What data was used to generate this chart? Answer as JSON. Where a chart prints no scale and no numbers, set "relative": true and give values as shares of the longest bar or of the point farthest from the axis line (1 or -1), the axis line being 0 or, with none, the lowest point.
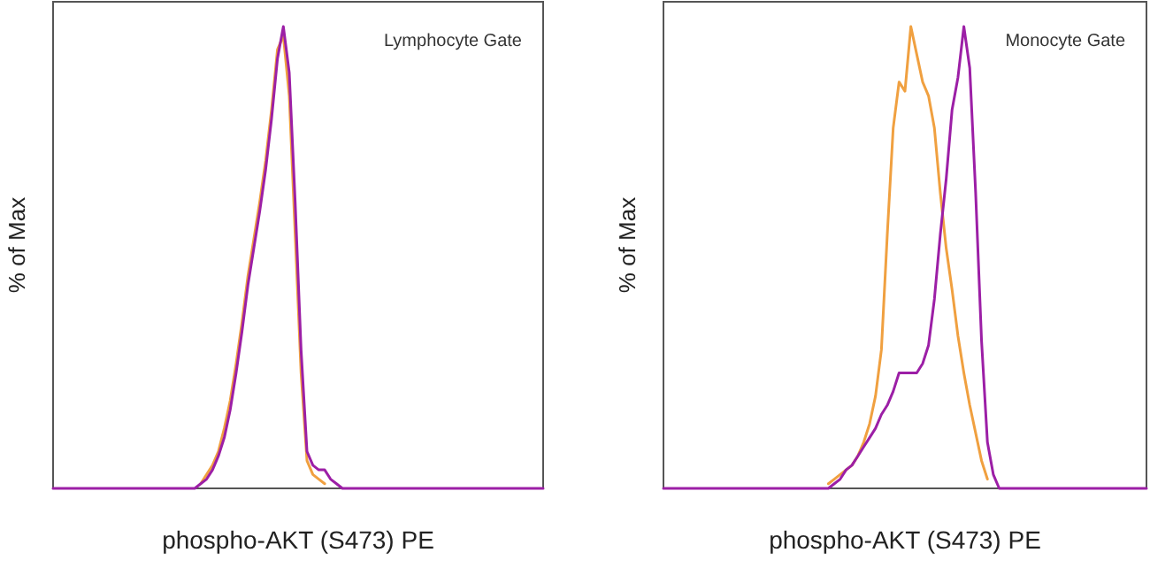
{
  "chart_data": [
    {
      "type": "line",
      "relative": true,
      "xlabel": "phospho-AKT (S473) PE",
      "ylabel": "% of Max",
      "annotations": [
        "Lymphocyte Gate"
      ],
      "categories": [
        null,
        null,
        null,
        null,
        null,
        null,
        null,
        null,
        null,
        null,
        null,
        null,
        null,
        null,
        null,
        null,
        null,
        null,
        null,
        null,
        null,
        null,
        null,
        null,
        null,
        null,
        null,
        null,
        null,
        null,
        null,
        null,
        null,
        null,
        null,
        null,
        null,
        null,
        null,
        null,
        null,
        null,
        null,
        null,
        null,
        null,
        null,
        null,
        null,
        null,
        null,
        null,
        null,
        null,
        null,
        null,
        null,
        null,
        null,
        null,
        null,
        null,
        null,
        null,
        null,
        null,
        null,
        null,
        null,
        null,
        null,
        null,
        null,
        null,
        null,
        null,
        null,
        null,
        null,
        null,
        null,
        null,
        null,
        null
      ],
      "series": [
        {
          "color": "#f0a040",
          "values": [
            null,
            null,
            null,
            null,
            null,
            null,
            null,
            null,
            null,
            null,
            null,
            null,
            null,
            null,
            null,
            null,
            null,
            null,
            null,
            null,
            null,
            null,
            null,
            null,
            null,
            0.01,
            0.03,
            0.05,
            0.08,
            0.13,
            0.19,
            0.27,
            0.36,
            0.46,
            0.54,
            0.62,
            0.71,
            0.82,
            0.95,
            0.98,
            0.85,
            0.55,
            0.25,
            0.06,
            0.03,
            0.02,
            0.01,
            null,
            null,
            null,
            null,
            null,
            null,
            null,
            null,
            null,
            null,
            null,
            null,
            null,
            null,
            null,
            null,
            null,
            null,
            null,
            null,
            null,
            null,
            null,
            null,
            null,
            null,
            null,
            null,
            null,
            null,
            null,
            null,
            null,
            null,
            null,
            null,
            null
          ]
        },
        {
          "color": "#9c1fa6",
          "values": [
            0,
            0,
            0,
            0,
            0,
            0,
            0,
            0,
            0,
            0,
            0,
            0,
            0,
            0,
            0,
            0,
            0,
            0,
            0,
            0,
            0,
            0,
            0,
            0,
            0,
            0.01,
            0.02,
            0.04,
            0.07,
            0.11,
            0.17,
            0.25,
            0.34,
            0.44,
            0.52,
            0.6,
            0.69,
            0.8,
            0.93,
            1,
            0.9,
            0.62,
            0.3,
            0.08,
            0.05,
            0.04,
            0.04,
            0.02,
            0.01,
            0,
            0,
            0,
            0,
            0,
            0,
            0,
            0,
            0,
            0,
            0,
            0,
            0,
            0,
            0,
            0,
            0,
            0,
            0,
            0,
            0,
            0,
            0,
            0,
            0,
            0,
            0,
            0,
            0,
            0,
            0,
            0,
            0,
            0,
            0
          ]
        }
      ]
    },
    {
      "type": "line",
      "relative": true,
      "xlabel": "phospho-AKT (S473) PE",
      "ylabel": "% of Max",
      "annotations": [
        "Monocyte Gate"
      ],
      "categories": [
        null,
        null,
        null,
        null,
        null,
        null,
        null,
        null,
        null,
        null,
        null,
        null,
        null,
        null,
        null,
        null,
        null,
        null,
        null,
        null,
        null,
        null,
        null,
        null,
        null,
        null,
        null,
        null,
        null,
        null,
        null,
        null,
        null,
        null,
        null,
        null,
        null,
        null,
        null,
        null,
        null,
        null,
        null,
        null,
        null,
        null,
        null,
        null,
        null,
        null,
        null,
        null,
        null,
        null,
        null,
        null,
        null,
        null,
        null,
        null,
        null,
        null,
        null,
        null,
        null,
        null,
        null,
        null,
        null,
        null,
        null,
        null,
        null,
        null,
        null,
        null,
        null,
        null,
        null,
        null,
        null,
        null,
        null
      ],
      "series": [
        {
          "color": "#f0a040",
          "values": [
            null,
            null,
            null,
            null,
            null,
            null,
            null,
            null,
            null,
            null,
            null,
            null,
            null,
            null,
            null,
            null,
            null,
            null,
            null,
            null,
            null,
            null,
            null,
            null,
            null,
            null,
            null,
            null,
            0.01,
            0.02,
            0.03,
            0.04,
            0.05,
            0.07,
            0.1,
            0.14,
            0.2,
            0.3,
            0.55,
            0.78,
            0.88,
            0.86,
            1,
            0.94,
            0.88,
            0.85,
            0.78,
            0.64,
            0.52,
            0.43,
            0.33,
            0.25,
            0.18,
            0.12,
            0.06,
            0.02,
            null,
            null,
            null,
            null,
            null,
            null,
            null,
            null,
            null,
            null,
            null,
            null,
            null,
            null,
            null,
            null,
            null,
            null,
            null,
            null,
            null,
            null,
            null,
            null,
            null,
            null,
            null
          ]
        },
        {
          "color": "#9c1fa6",
          "values": [
            0,
            0,
            0,
            0,
            0,
            0,
            0,
            0,
            0,
            0,
            0,
            0,
            0,
            0,
            0,
            0,
            0,
            0,
            0,
            0,
            0,
            0,
            0,
            0,
            0,
            0,
            0,
            0,
            0,
            0.01,
            0.02,
            0.04,
            0.05,
            0.07,
            0.09,
            0.11,
            0.13,
            0.16,
            0.18,
            0.21,
            0.25,
            0.25,
            0.25,
            0.25,
            0.27,
            0.31,
            0.41,
            0.55,
            0.67,
            0.82,
            0.89,
            1,
            0.91,
            0.64,
            0.32,
            0.1,
            0.03,
            0,
            0,
            0,
            0,
            0,
            0,
            0,
            0,
            0,
            0,
            0,
            0,
            0,
            0,
            0,
            0,
            0,
            0,
            0,
            0,
            0,
            0,
            0,
            0,
            0,
            0
          ]
        }
      ]
    }
  ]
}
